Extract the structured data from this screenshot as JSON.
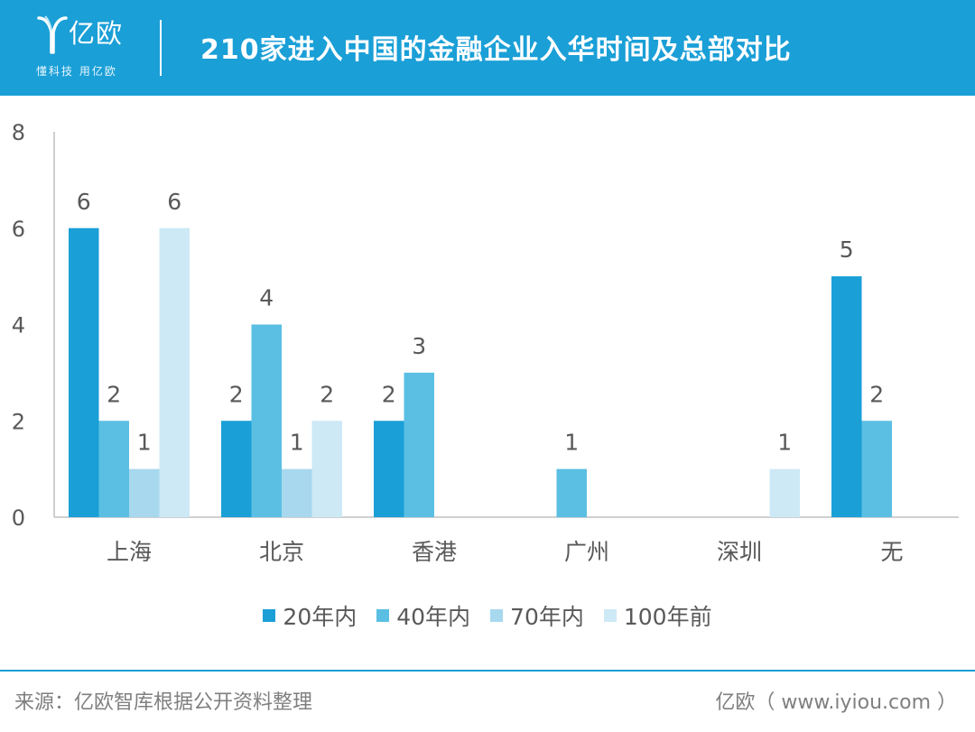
{
  "header": {
    "logo_name": "亿欧",
    "logo_slogan": "懂科技 用亿欧",
    "title": "210家进入中国的金融企业入华时间及总部对比"
  },
  "chart_data": {
    "type": "bar",
    "categories": [
      "上海",
      "北京",
      "香港",
      "广州",
      "深圳",
      "无"
    ],
    "series": [
      {
        "name": "20年内",
        "color": "#1a9fd7",
        "values": [
          6,
          2,
          2,
          null,
          null,
          5
        ]
      },
      {
        "name": "40年内",
        "color": "#5bbfe3",
        "values": [
          2,
          4,
          3,
          1,
          null,
          2
        ]
      },
      {
        "name": "70年内",
        "color": "#a7d8ee",
        "values": [
          1,
          1,
          null,
          null,
          null,
          null
        ]
      },
      {
        "name": "100年前",
        "color": "#cde9f5",
        "values": [
          6,
          2,
          null,
          null,
          1,
          null
        ]
      }
    ],
    "ylim": [
      0,
      8
    ],
    "yticks": [
      0,
      2,
      4,
      6,
      8
    ],
    "grid": false,
    "legend_position": "bottom"
  },
  "footer": {
    "source": "来源：亿欧智库根据公开资料整理",
    "credit": "亿欧（ www.iyiou.com ）"
  }
}
